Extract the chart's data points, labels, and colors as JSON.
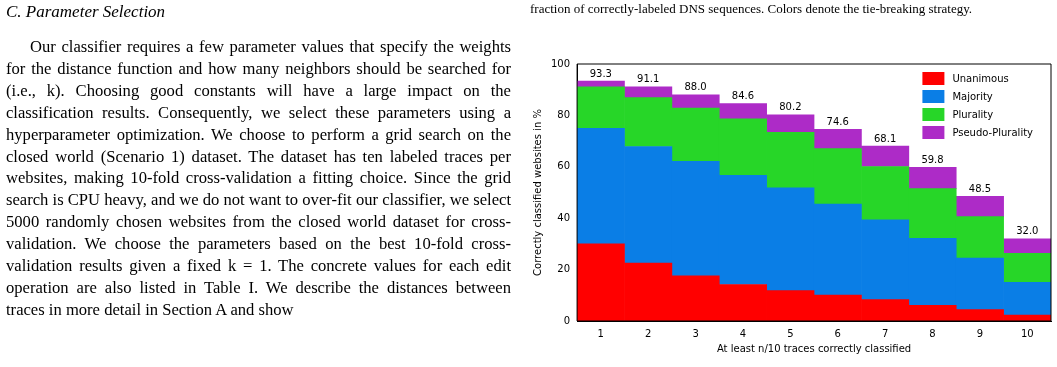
{
  "chart_data": {
    "type": "bar",
    "stacked": true,
    "categories": [
      "1",
      "2",
      "3",
      "4",
      "5",
      "6",
      "7",
      "8",
      "9",
      "10"
    ],
    "series": [
      {
        "name": "Unanimous",
        "color": "#ff0000",
        "values": [
          30.0,
          22.5,
          17.6,
          14.2,
          11.8,
          10.1,
          8.3,
          6.1,
          4.4,
          2.3
        ]
      },
      {
        "name": "Majority",
        "color": "#0a7ee6",
        "values": [
          45.0,
          45.4,
          44.5,
          42.5,
          40.0,
          35.4,
          31.1,
          26.1,
          20.1,
          12.7
        ]
      },
      {
        "name": "Plurality",
        "color": "#27d628",
        "values": [
          16.1,
          19.0,
          20.7,
          22.0,
          21.6,
          21.6,
          20.7,
          19.3,
          16.1,
          11.3
        ]
      },
      {
        "name": "Pseudo-Plurality",
        "color": "#ad2bc7",
        "values": [
          2.3,
          4.2,
          5.2,
          5.9,
          6.8,
          7.5,
          8.0,
          8.3,
          7.9,
          5.7
        ]
      }
    ],
    "totals": [
      "93.3",
      "91.1",
      "88.0",
      "84.6",
      "80.2",
      "74.6",
      "68.1",
      "59.8",
      "48.5",
      "32.0"
    ],
    "ylim": [
      0,
      100
    ],
    "yticks": [
      0,
      20,
      40,
      60,
      80,
      100
    ],
    "xlabel": "At least n/10 traces correctly classified",
    "ylabel": "Correctly classified websites in %",
    "legend": "top right",
    "annotations": [
      "C. Parameter Selection",
      "Our classifier requires a few parameter values that specify the weights for the distance function and how many neighbors should be searched for (i.e., k). Choosing good constants will have a large impact on the classification results. Consequently, we select these parameters using a hyperparameter optimization. We choose to perform a grid search on the closed world (Scenario 1) dataset. The dataset has ten labeled traces per websites, making 10-fold cross-validation a fitting choice. Since the grid search is CPU heavy, and we do not want to over-fit our classifier, we select 5000 randomly chosen websites from the closed world dataset for cross-validation. We choose the parameters based on the best 10-fold cross-validation results given a fixed k = 1. The concrete values for each edit operation are also listed in Table I. We describe the distances between traces in more detail in Section A and show",
      "fraction of correctly-labeled DNS sequences. Colors denote the tie-breaking strategy."
    ]
  }
}
